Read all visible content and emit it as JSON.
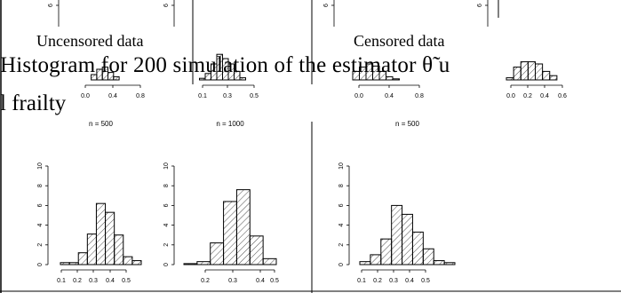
{
  "top_block": {
    "left_heading": "Uncensored data",
    "right_heading": "Censored data"
  },
  "caption": {
    "line1": "Histogram for 200 simulation of the estimator θ̃ u",
    "line2": "l frailty"
  },
  "panels": [
    {
      "title": "",
      "x_ticks": [
        "0.0",
        "0.4",
        "0.8"
      ],
      "y_ticks": [
        "6"
      ],
      "bars": [
        0.0,
        0.0,
        1.0,
        2.0,
        2.4,
        1.4,
        0.6,
        0.0,
        0.0,
        0.0
      ]
    },
    {
      "title": "",
      "x_ticks": [
        "0.1",
        "0.3",
        "0.5"
      ],
      "y_ticks": [
        "6"
      ],
      "bars": [
        0.0,
        0.3,
        1.2,
        3.0,
        4.8,
        4.0,
        3.0,
        1.6,
        0.4,
        0.0
      ]
    },
    {
      "title": "",
      "x_ticks": [
        "0.0",
        "0.4",
        "0.8"
      ],
      "y_ticks": [
        "6"
      ],
      "bars": [
        1.6,
        2.4,
        3.0,
        2.6,
        1.6,
        0.6,
        0.2,
        0.0,
        0.0,
        0.0
      ]
    },
    {
      "title": "",
      "x_ticks": [
        "0.0",
        "0.2",
        "0.4",
        "0.6"
      ],
      "y_ticks": [
        "6"
      ],
      "bars": [
        0.4,
        2.4,
        3.4,
        3.4,
        3.0,
        1.6,
        0.8,
        0.0
      ]
    },
    {
      "title": "n = 500",
      "x_ticks": [
        "0.1",
        "0.2",
        "0.3",
        "0.4",
        "0.5"
      ],
      "y_ticks": [
        "0",
        "2",
        "4",
        "6",
        "8",
        "10"
      ],
      "bars": [
        0.2,
        0.2,
        1.2,
        3.1,
        6.2,
        5.3,
        3.0,
        0.8,
        0.4
      ]
    },
    {
      "title": "n = 1000",
      "x_ticks": [
        "0.2",
        "0.3",
        "0.4",
        "0.5"
      ],
      "y_ticks": [
        "0",
        "2",
        "4",
        "6",
        "8",
        "10"
      ],
      "bars": [
        0.1,
        0.3,
        2.2,
        6.4,
        7.6,
        2.9,
        0.6
      ]
    },
    {
      "title": "n = 500",
      "x_ticks": [
        "0.1",
        "0.2",
        "0.3",
        "0.4",
        "0.5"
      ],
      "y_ticks": [
        "0",
        "2",
        "4",
        "6",
        "8",
        "10"
      ],
      "bars": [
        0.3,
        1.0,
        2.6,
        6.0,
        5.1,
        3.3,
        1.6,
        0.4,
        0.2
      ]
    }
  ]
}
